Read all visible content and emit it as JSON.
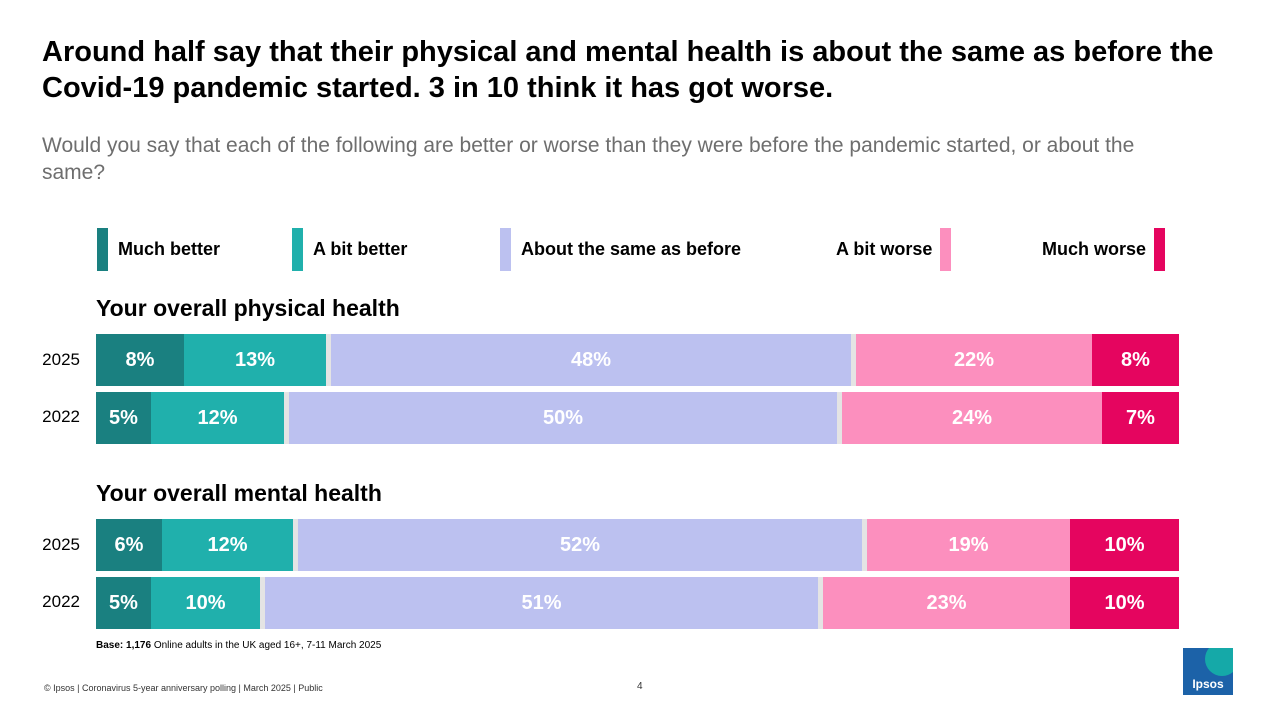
{
  "title": "Around half say that their physical and mental health is about the same as before the Covid-19 pandemic started.  3 in 10 think it has got worse.",
  "subtitle": "Would you say that each of the following are better or worse than they were before the pandemic started, or about the same?",
  "legend": [
    {
      "label": "Much better",
      "color": "#1a8080"
    },
    {
      "label": "A bit better",
      "color": "#20b0ac"
    },
    {
      "label": "About the same as before",
      "color": "#bcc1f0"
    },
    {
      "label": "A bit worse",
      "color": "#fc8fbe"
    },
    {
      "label": "Much worse",
      "color": "#e5055f"
    }
  ],
  "chart_data": {
    "type": "bar",
    "orientation": "horizontal",
    "stacked": true,
    "series_names": [
      "Much better",
      "A bit better",
      "About the same as before",
      "A bit worse",
      "Much worse"
    ],
    "groups": [
      {
        "title": "Your overall physical health",
        "rows": [
          {
            "label": "2025",
            "values": [
              8,
              13,
              48,
              22,
              8
            ],
            "display": [
              "8%",
              "13%",
              "48%",
              "22%",
              "8%"
            ]
          },
          {
            "label": "2022",
            "values": [
              5,
              12,
              50,
              24,
              7
            ],
            "display": [
              "5%",
              "12%",
              "50%",
              "24%",
              "7%"
            ]
          }
        ]
      },
      {
        "title": "Your overall mental health",
        "rows": [
          {
            "label": "2025",
            "values": [
              6,
              12,
              52,
              19,
              10
            ],
            "display": [
              "6%",
              "12%",
              "52%",
              "19%",
              "10%"
            ]
          },
          {
            "label": "2022",
            "values": [
              5,
              10,
              51,
              23,
              10
            ],
            "display": [
              "5%",
              "10%",
              "51%",
              "23%",
              "10%"
            ]
          }
        ]
      }
    ]
  },
  "base": {
    "label": "Base:",
    "count": "1,176",
    "text": "Online adults in the UK aged 16+, 7-11 March 2025"
  },
  "footer": "© Ipsos | Coronavirus 5-year anniversary polling | March 2025 | Public",
  "page_number": "4",
  "logo_text": "Ipsos"
}
